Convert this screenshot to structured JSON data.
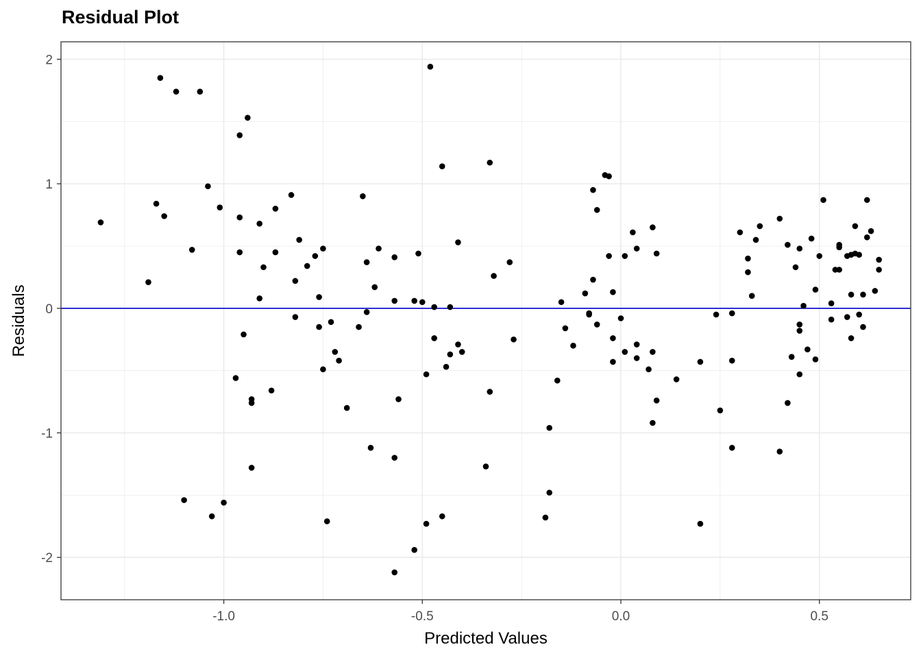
{
  "chart_data": {
    "type": "scatter",
    "title": "Residual Plot",
    "xlabel": "Predicted Values",
    "ylabel": "Residuals",
    "xlim": [
      -1.41,
      0.73
    ],
    "ylim": [
      -2.34,
      2.14
    ],
    "x_ticks": [
      -1.0,
      -0.5,
      0.0,
      0.5
    ],
    "x_tick_labels": [
      "-1.0",
      "-0.5",
      "0.0",
      "0.5"
    ],
    "y_ticks": [
      -2,
      -1,
      0,
      1,
      2
    ],
    "y_tick_labels": [
      "-2",
      "-1",
      "0",
      "1",
      "2"
    ],
    "grid": true,
    "reference_line": {
      "y": 0,
      "color": "#0000CD"
    },
    "point_color": "#000000",
    "points": [
      [
        -1.31,
        0.69
      ],
      [
        -1.19,
        0.21
      ],
      [
        -1.17,
        0.84
      ],
      [
        -1.16,
        1.85
      ],
      [
        -1.15,
        0.74
      ],
      [
        -1.12,
        1.74
      ],
      [
        -1.1,
        -1.54
      ],
      [
        -1.08,
        0.47
      ],
      [
        -1.06,
        1.74
      ],
      [
        -1.04,
        0.98
      ],
      [
        -1.03,
        -1.67
      ],
      [
        -1.01,
        0.81
      ],
      [
        -1.0,
        -1.56
      ],
      [
        -0.97,
        -0.56
      ],
      [
        -0.96,
        1.39
      ],
      [
        -0.96,
        0.73
      ],
      [
        -0.96,
        0.45
      ],
      [
        -0.95,
        -0.21
      ],
      [
        -0.94,
        1.53
      ],
      [
        -0.93,
        -0.73
      ],
      [
        -0.93,
        -0.76
      ],
      [
        -0.93,
        -1.28
      ],
      [
        -0.91,
        0.68
      ],
      [
        -0.91,
        0.08
      ],
      [
        -0.9,
        0.33
      ],
      [
        -0.88,
        -0.66
      ],
      [
        -0.87,
        0.8
      ],
      [
        -0.87,
        0.45
      ],
      [
        -0.83,
        0.91
      ],
      [
        -0.82,
        0.22
      ],
      [
        -0.82,
        -0.07
      ],
      [
        -0.81,
        0.55
      ],
      [
        -0.79,
        0.34
      ],
      [
        -0.77,
        0.42
      ],
      [
        -0.76,
        0.09
      ],
      [
        -0.76,
        -0.15
      ],
      [
        -0.75,
        0.48
      ],
      [
        -0.75,
        -0.49
      ],
      [
        -0.74,
        -1.71
      ],
      [
        -0.73,
        -0.11
      ],
      [
        -0.72,
        -0.35
      ],
      [
        -0.71,
        -0.42
      ],
      [
        -0.69,
        -0.8
      ],
      [
        -0.66,
        -0.15
      ],
      [
        -0.65,
        0.9
      ],
      [
        -0.64,
        0.37
      ],
      [
        -0.64,
        -0.03
      ],
      [
        -0.63,
        -1.12
      ],
      [
        -0.62,
        0.17
      ],
      [
        -0.61,
        0.48
      ],
      [
        -0.57,
        -1.2
      ],
      [
        -0.57,
        -2.12
      ],
      [
        -0.57,
        0.41
      ],
      [
        -0.57,
        0.06
      ],
      [
        -0.56,
        -0.73
      ],
      [
        -0.52,
        0.06
      ],
      [
        -0.52,
        -1.94
      ],
      [
        -0.51,
        0.44
      ],
      [
        -0.5,
        0.05
      ],
      [
        -0.49,
        -1.73
      ],
      [
        -0.49,
        -0.53
      ],
      [
        -0.48,
        1.94
      ],
      [
        -0.47,
        -0.24
      ],
      [
        -0.47,
        0.01
      ],
      [
        -0.45,
        1.14
      ],
      [
        -0.45,
        -1.67
      ],
      [
        -0.44,
        -0.47
      ],
      [
        -0.43,
        -0.37
      ],
      [
        -0.43,
        0.01
      ],
      [
        -0.41,
        0.53
      ],
      [
        -0.41,
        -0.29
      ],
      [
        -0.4,
        -0.35
      ],
      [
        -0.34,
        -1.27
      ],
      [
        -0.33,
        1.17
      ],
      [
        -0.33,
        -0.67
      ],
      [
        -0.32,
        0.26
      ],
      [
        -0.28,
        0.37
      ],
      [
        -0.27,
        -0.25
      ],
      [
        -0.19,
        -1.68
      ],
      [
        -0.18,
        -1.48
      ],
      [
        -0.18,
        -0.96
      ],
      [
        -0.16,
        -0.58
      ],
      [
        -0.15,
        0.05
      ],
      [
        -0.14,
        -0.16
      ],
      [
        -0.12,
        -0.3
      ],
      [
        -0.09,
        0.12
      ],
      [
        -0.08,
        -0.04
      ],
      [
        -0.08,
        -0.05
      ],
      [
        -0.07,
        0.95
      ],
      [
        -0.07,
        0.23
      ],
      [
        -0.06,
        0.79
      ],
      [
        -0.06,
        -0.13
      ],
      [
        -0.04,
        1.07
      ],
      [
        -0.03,
        1.06
      ],
      [
        -0.03,
        0.42
      ],
      [
        -0.02,
        0.13
      ],
      [
        -0.02,
        -0.24
      ],
      [
        -0.02,
        -0.43
      ],
      [
        0.0,
        -0.08
      ],
      [
        0.01,
        0.42
      ],
      [
        0.01,
        -0.35
      ],
      [
        0.03,
        0.61
      ],
      [
        0.04,
        -0.4
      ],
      [
        0.04,
        0.48
      ],
      [
        0.04,
        -0.29
      ],
      [
        0.07,
        -0.49
      ],
      [
        0.08,
        -0.92
      ],
      [
        0.08,
        0.65
      ],
      [
        0.08,
        -0.35
      ],
      [
        0.09,
        0.44
      ],
      [
        0.09,
        -0.74
      ],
      [
        0.14,
        -0.57
      ],
      [
        0.2,
        -0.43
      ],
      [
        0.2,
        -1.73
      ],
      [
        0.24,
        -0.05
      ],
      [
        0.25,
        -0.82
      ],
      [
        0.28,
        -0.42
      ],
      [
        0.28,
        -1.12
      ],
      [
        0.28,
        -0.04
      ],
      [
        0.3,
        0.61
      ],
      [
        0.32,
        0.4
      ],
      [
        0.32,
        0.29
      ],
      [
        0.33,
        0.1
      ],
      [
        0.34,
        0.55
      ],
      [
        0.35,
        0.66
      ],
      [
        0.4,
        -1.15
      ],
      [
        0.4,
        0.72
      ],
      [
        0.42,
        -0.76
      ],
      [
        0.42,
        0.51
      ],
      [
        0.43,
        -0.39
      ],
      [
        0.44,
        0.33
      ],
      [
        0.45,
        -0.18
      ],
      [
        0.45,
        -0.13
      ],
      [
        0.45,
        -0.53
      ],
      [
        0.45,
        0.48
      ],
      [
        0.46,
        0.02
      ],
      [
        0.47,
        -0.33
      ],
      [
        0.48,
        0.56
      ],
      [
        0.49,
        -0.41
      ],
      [
        0.49,
        0.15
      ],
      [
        0.5,
        0.42
      ],
      [
        0.51,
        0.87
      ],
      [
        0.53,
        0.04
      ],
      [
        0.53,
        -0.09
      ],
      [
        0.54,
        0.31
      ],
      [
        0.55,
        0.49
      ],
      [
        0.55,
        0.51
      ],
      [
        0.55,
        0.31
      ],
      [
        0.57,
        -0.07
      ],
      [
        0.57,
        0.42
      ],
      [
        0.58,
        0.43
      ],
      [
        0.58,
        0.11
      ],
      [
        0.58,
        -0.24
      ],
      [
        0.59,
        0.66
      ],
      [
        0.59,
        0.44
      ],
      [
        0.6,
        0.43
      ],
      [
        0.6,
        -0.05
      ],
      [
        0.61,
        -0.15
      ],
      [
        0.61,
        0.11
      ],
      [
        0.62,
        0.57
      ],
      [
        0.62,
        0.87
      ],
      [
        0.63,
        0.62
      ],
      [
        0.64,
        0.14
      ],
      [
        0.65,
        0.31
      ],
      [
        0.65,
        0.39
      ]
    ]
  }
}
